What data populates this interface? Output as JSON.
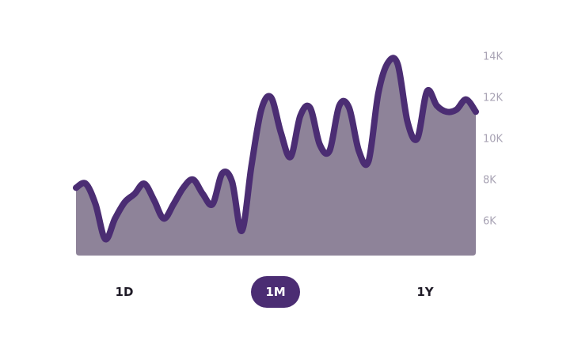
{
  "colors": {
    "line": "#4b2d73",
    "area": "#8e8399",
    "accent": "#4b2d73",
    "tick_text": "#a8a3b4"
  },
  "chart_data": {
    "type": "area",
    "title": "",
    "xlabel": "",
    "ylabel": "",
    "y_axis_position": "right",
    "ylim": [
      4300,
      14700
    ],
    "yticks": [
      {
        "value": 6000,
        "label": "6K"
      },
      {
        "value": 8000,
        "label": "8K"
      },
      {
        "value": 10000,
        "label": "10K"
      },
      {
        "value": 12000,
        "label": "12K"
      },
      {
        "value": 14000,
        "label": "14K"
      }
    ],
    "grid": false,
    "legend": "none",
    "x": [
      0,
      1,
      2,
      3,
      4,
      5,
      6,
      7,
      8,
      9,
      10,
      11,
      12,
      13,
      14,
      15,
      16,
      17,
      18,
      19,
      20,
      21,
      22,
      23,
      24,
      25,
      26,
      27,
      28,
      29,
      30,
      31,
      32,
      33,
      34,
      35,
      36,
      37,
      38,
      39,
      40,
      41
    ],
    "values": [
      7600,
      7800,
      6800,
      5100,
      6100,
      6900,
      7300,
      7800,
      7000,
      6100,
      6800,
      7600,
      8000,
      7300,
      6800,
      8300,
      7900,
      5500,
      8700,
      11400,
      12000,
      10300,
      9100,
      11100,
      11500,
      9700,
      9400,
      11600,
      11500,
      9400,
      8900,
      12200,
      13700,
      13600,
      10800,
      10000,
      12300,
      11600,
      11300,
      11400,
      11900,
      11300
    ]
  },
  "range_selector": {
    "items": [
      {
        "label": "1D",
        "active": false
      },
      {
        "label": "1M",
        "active": true
      },
      {
        "label": "1Y",
        "active": false
      }
    ]
  }
}
